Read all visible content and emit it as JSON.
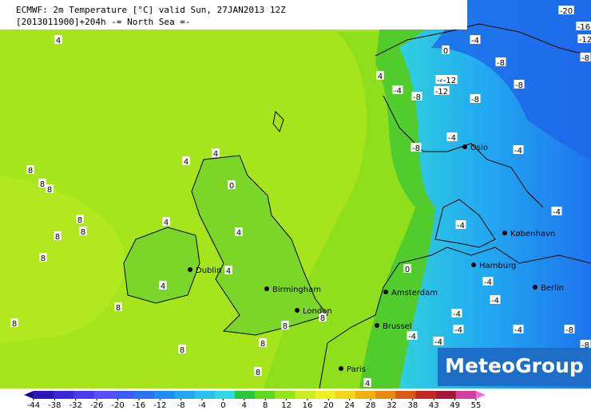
{
  "header": {
    "line1": "ECMWF: 2m Temperature [°C] valid Sun, 27JAN2013 12Z",
    "line2": "[2013011900]+204h  -= North Sea =-"
  },
  "logo": "MeteoGroup",
  "cities": [
    "Dublin",
    "Birmingham",
    "London",
    "Paris",
    "Brussel",
    "Amsterdam",
    "Hamburg",
    "Berlin",
    "København",
    "Oslo"
  ],
  "isotherm_labels": [
    4,
    0,
    -4,
    4,
    -4,
    -8,
    -4,
    -12,
    -12,
    -8,
    -8,
    -8,
    -8,
    4,
    4,
    0,
    8,
    8,
    8,
    8,
    8,
    8,
    4,
    4,
    8,
    4,
    4,
    8,
    8,
    8,
    8,
    8,
    8,
    8,
    4,
    -8,
    -4,
    -4,
    -4,
    -4,
    0,
    -4,
    -4,
    -4,
    -4,
    -4,
    -4,
    -4,
    -8,
    -20,
    -16,
    -12,
    -8
  ],
  "colorbar": {
    "ticks": [
      -44,
      -38,
      -32,
      -26,
      -20,
      -16,
      -12,
      -8,
      -4,
      0,
      4,
      8,
      12,
      16,
      20,
      24,
      28,
      32,
      38,
      43,
      49,
      55
    ],
    "colors": [
      "#1a0a8c",
      "#2a18b4",
      "#3a28d8",
      "#4a3af0",
      "#5a4cff",
      "#3c5cf5",
      "#2a74f0",
      "#1e8cf0",
      "#22a6f2",
      "#28c0f0",
      "#30d8e6",
      "#28c838",
      "#60d81c",
      "#96e41a",
      "#c8ee1e",
      "#eef020",
      "#f4d818",
      "#f0b010",
      "#e88a10",
      "#d85a14",
      "#c02820",
      "#a01a3c",
      "#d040a0",
      "#f070d0"
    ]
  }
}
